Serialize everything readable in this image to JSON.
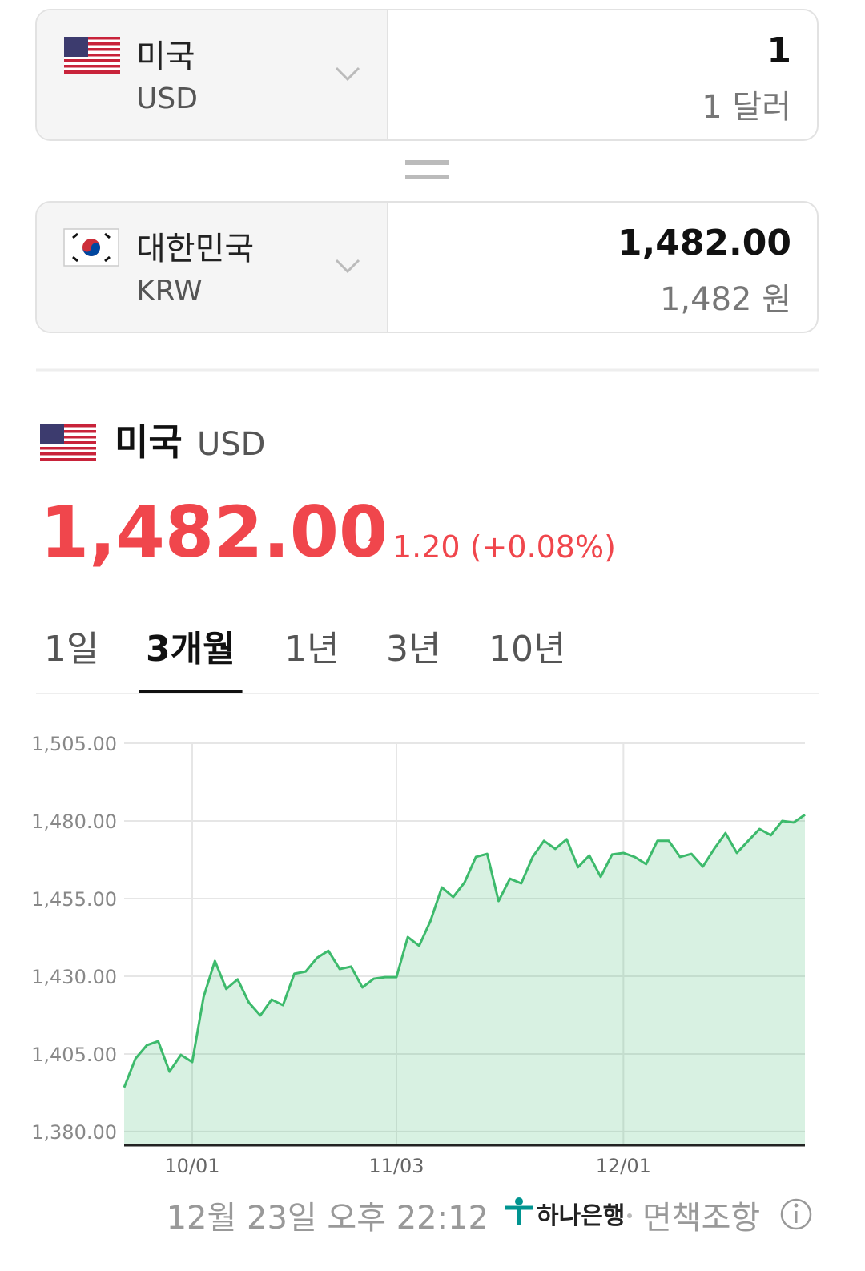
{
  "converter": {
    "from": {
      "country": "미국",
      "code": "USD",
      "amount": "1",
      "amount_text": "1 달러"
    },
    "to": {
      "country": "대한민국",
      "code": "KRW",
      "amount": "1,482.00",
      "amount_text": "1,482 원"
    }
  },
  "summary": {
    "country": "미국",
    "code": "USD",
    "rate": "1,482.00",
    "change": "1.20 (+0.08%)"
  },
  "tabs": {
    "items": [
      "1일",
      "3개월",
      "1년",
      "3년",
      "10년"
    ],
    "active": 1
  },
  "chart_data": {
    "type": "area",
    "categories": [
      null,
      null,
      null,
      null,
      null,
      null,
      "10/01",
      null,
      null,
      null,
      null,
      null,
      null,
      null,
      null,
      null,
      null,
      null,
      null,
      null,
      null,
      null,
      null,
      null,
      "11/03",
      null,
      null,
      null,
      null,
      null,
      null,
      null,
      null,
      null,
      null,
      null,
      null,
      null,
      null,
      null,
      null,
      null,
      null,
      null,
      "12/01",
      null,
      null,
      null,
      null,
      null,
      null,
      null,
      null,
      null,
      null,
      null,
      null,
      null,
      null,
      null,
      null
    ],
    "values": [
      1394.2,
      1403.5,
      1407.8,
      1409.1,
      1399.3,
      1404.7,
      1402.4,
      1423.3,
      1434.9,
      1425.9,
      1429.0,
      1421.5,
      1417.4,
      1422.5,
      1420.7,
      1430.8,
      1431.5,
      1435.9,
      1438.2,
      1432.3,
      1433.1,
      1426.4,
      1429.2,
      1429.7,
      1429.7,
      1442.6,
      1439.8,
      1447.8,
      1458.6,
      1455.5,
      1460.2,
      1468.4,
      1469.4,
      1454.2,
      1461.4,
      1459.9,
      1468.4,
      1473.6,
      1471.0,
      1474.1,
      1465.1,
      1468.9,
      1462.0,
      1469.2,
      1469.7,
      1468.4,
      1466.1,
      1473.6,
      1473.6,
      1468.4,
      1469.4,
      1465.3,
      1471.0,
      1476.1,
      1469.7,
      1473.6,
      1477.4,
      1475.4,
      1480.0,
      1479.5,
      1482.0
    ],
    "color": "#3dba6c",
    "ylim": [
      1375.6,
      1505
    ],
    "yticks": [
      {
        "value": 1380,
        "label": "1,380.00"
      },
      {
        "value": 1405,
        "label": "1,405.00"
      },
      {
        "value": 1430,
        "label": "1,430.00"
      },
      {
        "value": 1455,
        "label": "1,455.00"
      },
      {
        "value": 1480,
        "label": "1,480.00"
      },
      {
        "value": 1505,
        "label": "1,505.00"
      }
    ],
    "grid": true
  },
  "footer": {
    "timestamp": "12월 23일 오후 22:12",
    "bank": "하나은행",
    "disclaimer": "면책조항"
  }
}
